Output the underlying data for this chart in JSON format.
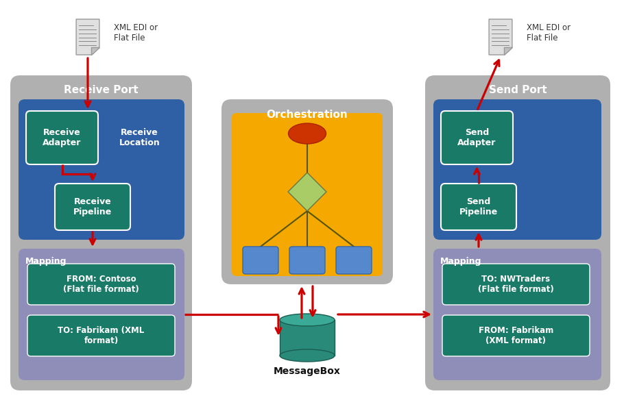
{
  "bg_color": "#ffffff",
  "gray_panel": "#b0b0b0",
  "blue_panel": "#2f5fa5",
  "teal_box": "#1a7a68",
  "purple_panel": "#8888bb",
  "yellow_panel": "#f5a800",
  "arrow_color": "#cc0000",
  "orchestration_line_color": "#555500",
  "receive_port_title": "Receive Port",
  "send_port_title": "Send Port",
  "orchestration_title": "Orchestration",
  "messagebox_label": "MessageBox",
  "receive_adapter_label": "Receive\nAdapter",
  "receive_location_label": "Receive\nLocation",
  "receive_pipeline_label": "Receive\nPipeline",
  "send_adapter_label": "Send\nAdapter",
  "send_pipeline_label": "Send\nPipeline",
  "mapping_left_title": "Mapping",
  "mapping_right_title": "Mapping",
  "left_map1": "FROM: Contoso\n(Flat file format)",
  "left_map2": "TO: Fabrikam (XML\nformat)",
  "right_map1": "TO: NWTraders\n(Flat file format)",
  "right_map2": "FROM: Fabrikam\n(XML format)",
  "file_label_left": "XML EDI or\nFlat File",
  "file_label_right": "XML EDI or\nFlat File",
  "teal_cyl": "#2a8a7a",
  "teal_cyl_top": "#3aaa96",
  "diamond_color": "#aacc66",
  "oval_color": "#cc3300",
  "blue_box_orch": "#5588cc"
}
